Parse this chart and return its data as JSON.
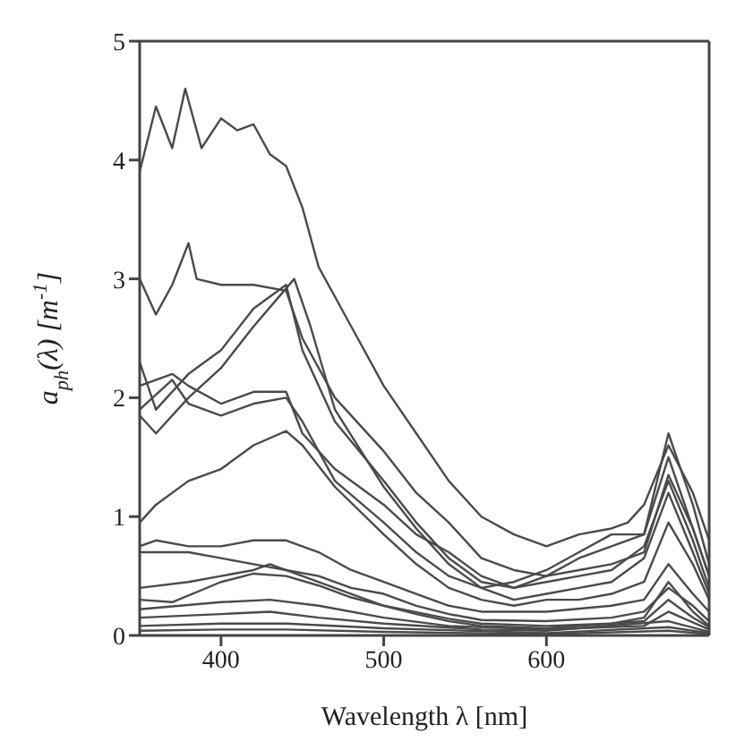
{
  "chart_data": {
    "type": "line",
    "xlabel": "Wavelength λ [nm]",
    "ylabel": "a$_{ph}$(λ) [m$^{-1}$]",
    "xlim": [
      350,
      700
    ],
    "ylim": [
      0,
      5
    ],
    "xticks": [
      400,
      500,
      600
    ],
    "yticks": [
      0,
      1,
      2,
      3,
      4,
      5
    ],
    "grid": false,
    "marker": "none",
    "line_style": "solid",
    "series": [
      {
        "color": "#4a4a4a",
        "x": [
          350,
          360,
          370,
          378,
          388,
          400,
          410,
          420,
          430,
          440,
          450,
          460,
          470,
          480,
          500,
          520,
          540,
          560,
          580,
          600,
          620,
          640,
          650,
          660,
          675,
          690,
          700
        ],
        "values": [
          3.9,
          4.45,
          4.1,
          4.6,
          4.1,
          4.35,
          4.25,
          4.3,
          4.05,
          3.95,
          3.6,
          3.1,
          2.85,
          2.6,
          2.1,
          1.7,
          1.3,
          1.0,
          0.85,
          0.75,
          0.85,
          0.9,
          0.95,
          1.1,
          1.6,
          1.2,
          0.8
        ]
      },
      {
        "color": "#4a4a4a",
        "x": [
          350,
          360,
          370,
          380,
          385,
          400,
          420,
          440,
          450,
          470,
          500,
          520,
          540,
          560,
          580,
          600,
          620,
          640,
          660,
          675,
          690,
          700
        ],
        "values": [
          3.0,
          2.7,
          2.95,
          3.3,
          3.0,
          2.95,
          2.95,
          2.9,
          2.5,
          2.0,
          1.55,
          1.2,
          0.95,
          0.65,
          0.55,
          0.5,
          0.55,
          0.6,
          0.7,
          1.35,
          0.9,
          0.5
        ]
      },
      {
        "color": "#4a4a4a",
        "x": [
          350,
          360,
          380,
          400,
          420,
          440,
          450,
          470,
          500,
          520,
          540,
          560,
          580,
          600,
          620,
          640,
          660,
          675,
          690,
          700
        ],
        "values": [
          2.3,
          1.9,
          2.2,
          2.4,
          2.75,
          2.95,
          2.4,
          1.8,
          1.3,
          0.95,
          0.65,
          0.45,
          0.4,
          0.45,
          0.5,
          0.55,
          0.75,
          1.3,
          0.8,
          0.4
        ]
      },
      {
        "color": "#4a4a4a",
        "x": [
          350,
          360,
          380,
          400,
          420,
          445,
          455,
          470,
          500,
          520,
          540,
          560,
          580,
          600,
          620,
          640,
          660,
          675,
          690,
          700
        ],
        "values": [
          1.85,
          1.7,
          2.0,
          2.25,
          2.6,
          3.0,
          2.6,
          1.9,
          1.25,
          0.9,
          0.6,
          0.4,
          0.3,
          0.35,
          0.4,
          0.45,
          0.65,
          1.2,
          0.7,
          0.35
        ]
      },
      {
        "color": "#4a4a4a",
        "x": [
          350,
          370,
          380,
          400,
          420,
          440,
          450,
          470,
          500,
          520,
          540,
          560,
          580,
          600,
          620,
          640,
          660,
          675,
          690,
          700
        ],
        "values": [
          2.1,
          2.2,
          2.1,
          1.95,
          2.05,
          2.05,
          1.7,
          1.4,
          1.1,
          0.85,
          0.7,
          0.5,
          0.4,
          0.5,
          0.65,
          0.75,
          0.85,
          1.7,
          1.1,
          0.6
        ]
      },
      {
        "color": "#4a4a4a",
        "x": [
          350,
          370,
          380,
          400,
          420,
          440,
          450,
          470,
          500,
          520,
          540,
          560,
          580,
          600,
          620,
          640,
          660,
          675,
          690,
          700
        ],
        "values": [
          1.9,
          2.15,
          1.95,
          1.85,
          1.95,
          2.0,
          1.8,
          1.3,
          0.95,
          0.7,
          0.5,
          0.4,
          0.45,
          0.55,
          0.7,
          0.85,
          0.85,
          1.5,
          0.9,
          0.5
        ]
      },
      {
        "color": "#4a4a4a",
        "x": [
          350,
          360,
          380,
          400,
          420,
          440,
          450,
          470,
          500,
          520,
          540,
          560,
          580,
          600,
          620,
          640,
          660,
          675,
          690,
          700
        ],
        "values": [
          0.95,
          1.1,
          1.3,
          1.4,
          1.6,
          1.72,
          1.6,
          1.25,
          0.85,
          0.6,
          0.4,
          0.3,
          0.25,
          0.3,
          0.3,
          0.35,
          0.45,
          0.95,
          0.6,
          0.3
        ]
      },
      {
        "color": "#4a4a4a",
        "x": [
          350,
          360,
          380,
          400,
          420,
          440,
          460,
          480,
          500,
          520,
          540,
          560,
          600,
          640,
          660,
          675,
          690,
          700
        ],
        "values": [
          0.75,
          0.8,
          0.75,
          0.75,
          0.8,
          0.8,
          0.7,
          0.55,
          0.45,
          0.35,
          0.25,
          0.2,
          0.2,
          0.25,
          0.3,
          0.6,
          0.35,
          0.2
        ]
      },
      {
        "color": "#4a4a4a",
        "x": [
          350,
          380,
          400,
          420,
          440,
          460,
          480,
          500,
          520,
          540,
          560,
          600,
          640,
          660,
          675,
          690,
          700
        ],
        "values": [
          0.7,
          0.7,
          0.65,
          0.6,
          0.55,
          0.5,
          0.4,
          0.35,
          0.25,
          0.18,
          0.13,
          0.12,
          0.15,
          0.2,
          0.4,
          0.25,
          0.12
        ]
      },
      {
        "color": "#4a4a4a",
        "x": [
          350,
          380,
          400,
          420,
          430,
          450,
          480,
          500,
          520,
          540,
          560,
          600,
          640,
          660,
          675,
          690,
          700
        ],
        "values": [
          0.4,
          0.45,
          0.5,
          0.55,
          0.6,
          0.5,
          0.35,
          0.25,
          0.18,
          0.12,
          0.08,
          0.06,
          0.1,
          0.15,
          0.45,
          0.2,
          0.08
        ]
      },
      {
        "color": "#4a4a4a",
        "x": [
          350,
          370,
          400,
          420,
          440,
          460,
          480,
          500,
          540,
          560,
          600,
          640,
          660,
          675,
          690,
          700
        ],
        "values": [
          0.3,
          0.28,
          0.45,
          0.52,
          0.5,
          0.42,
          0.32,
          0.25,
          0.14,
          0.1,
          0.08,
          0.1,
          0.12,
          0.3,
          0.15,
          0.07
        ]
      },
      {
        "color": "#4a4a4a",
        "x": [
          350,
          400,
          430,
          460,
          500,
          540,
          600,
          660,
          675,
          700
        ],
        "values": [
          0.22,
          0.28,
          0.3,
          0.25,
          0.15,
          0.08,
          0.05,
          0.08,
          0.2,
          0.05
        ]
      },
      {
        "color": "#4a4a4a",
        "x": [
          350,
          400,
          430,
          460,
          500,
          560,
          600,
          675,
          700
        ],
        "values": [
          0.15,
          0.18,
          0.2,
          0.15,
          0.1,
          0.05,
          0.04,
          0.12,
          0.03
        ]
      },
      {
        "color": "#4a4a4a",
        "x": [
          350,
          400,
          440,
          500,
          600,
          675,
          700
        ],
        "values": [
          0.08,
          0.1,
          0.1,
          0.06,
          0.02,
          0.07,
          0.02
        ]
      },
      {
        "color": "#4a4a4a",
        "x": [
          350,
          400,
          440,
          500,
          600,
          675,
          700
        ],
        "values": [
          0.04,
          0.05,
          0.05,
          0.03,
          0.01,
          0.04,
          0.01
        ]
      }
    ]
  }
}
